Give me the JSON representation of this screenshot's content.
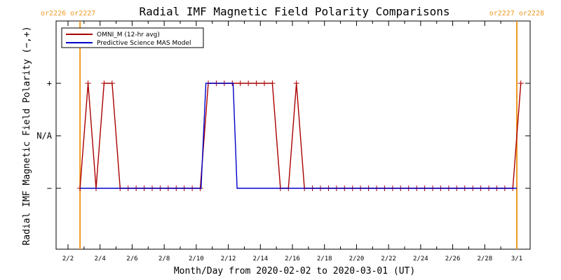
{
  "chart_data": {
    "type": "line",
    "title": "Radial IMF Magnetic Field Polarity Comparisons",
    "xlabel": "Month/Day from 2020-02-02 to 2020-03-01 (UT)",
    "ylabel": "Radial IMF Magnetic Field Polarity (−,+)",
    "x_unit": "days since 2020-02-02 00:00 UT",
    "xlim": [
      0,
      28.1
    ],
    "ylim": [
      -1.5,
      1.5
    ],
    "x_ticks": [
      {
        "x": 0,
        "label": "2/2"
      },
      {
        "x": 2,
        "label": "2/4"
      },
      {
        "x": 4,
        "label": "2/6"
      },
      {
        "x": 6,
        "label": "2/8"
      },
      {
        "x": 8,
        "label": "2/10"
      },
      {
        "x": 10,
        "label": "2/12"
      },
      {
        "x": 12,
        "label": "2/14"
      },
      {
        "x": 14,
        "label": "2/16"
      },
      {
        "x": 16,
        "label": "2/18"
      },
      {
        "x": 18,
        "label": "2/20"
      },
      {
        "x": 20,
        "label": "2/22"
      },
      {
        "x": 22,
        "label": "2/24"
      },
      {
        "x": 24,
        "label": "2/26"
      },
      {
        "x": 26,
        "label": "2/28"
      },
      {
        "x": 28,
        "label": "3/1"
      }
    ],
    "y_ticks": [
      {
        "y": 1,
        "label": "+"
      },
      {
        "y": 0,
        "label": "N/A"
      },
      {
        "y": -1,
        "label": "−"
      }
    ],
    "legend": {
      "placement": "top-left"
    },
    "carrington_markers": [
      {
        "x": 0.75,
        "left_label": "or2226",
        "right_label": "or2227",
        "label_side": "left"
      },
      {
        "x": 28.0,
        "left_label": "or2227",
        "right_label": "or2228",
        "label_side": "right"
      }
    ],
    "series": [
      {
        "name": "OMNI_M (12-hr avg)",
        "color": "#aa0000",
        "markers": true,
        "points": [
          [
            0.75,
            -1
          ],
          [
            1.25,
            1
          ],
          [
            1.75,
            -1
          ],
          [
            2.25,
            1
          ],
          [
            2.75,
            1
          ],
          [
            3.25,
            -1
          ],
          [
            3.75,
            -1
          ],
          [
            4.25,
            -1
          ],
          [
            4.75,
            -1
          ],
          [
            5.25,
            -1
          ],
          [
            5.75,
            -1
          ],
          [
            6.25,
            -1
          ],
          [
            6.75,
            -1
          ],
          [
            7.25,
            -1
          ],
          [
            7.75,
            -1
          ],
          [
            8.25,
            -1
          ],
          [
            8.75,
            1
          ],
          [
            9.25,
            1
          ],
          [
            9.75,
            1
          ],
          [
            10.25,
            1
          ],
          [
            10.75,
            1
          ],
          [
            11.25,
            1
          ],
          [
            11.75,
            1
          ],
          [
            12.25,
            1
          ],
          [
            12.75,
            1
          ],
          [
            13.25,
            -1
          ],
          [
            13.75,
            -1
          ],
          [
            14.25,
            1
          ],
          [
            14.75,
            -1
          ],
          [
            15.25,
            -1
          ],
          [
            15.75,
            -1
          ],
          [
            16.25,
            -1
          ],
          [
            16.75,
            -1
          ],
          [
            17.25,
            -1
          ],
          [
            17.75,
            -1
          ],
          [
            18.25,
            -1
          ],
          [
            18.75,
            -1
          ],
          [
            19.25,
            -1
          ],
          [
            19.75,
            -1
          ],
          [
            20.25,
            -1
          ],
          [
            20.75,
            -1
          ],
          [
            21.25,
            -1
          ],
          [
            21.75,
            -1
          ],
          [
            22.25,
            -1
          ],
          [
            22.75,
            -1
          ],
          [
            23.25,
            -1
          ],
          [
            23.75,
            -1
          ],
          [
            24.25,
            -1
          ],
          [
            24.75,
            -1
          ],
          [
            25.25,
            -1
          ],
          [
            25.75,
            -1
          ],
          [
            26.25,
            -1
          ],
          [
            26.75,
            -1
          ],
          [
            27.25,
            -1
          ],
          [
            27.75,
            -1
          ],
          [
            28.25,
            1
          ]
        ]
      },
      {
        "name": "Predictive Science MAS Model",
        "color": "#0000cc",
        "markers": false,
        "points": [
          [
            0.75,
            -1
          ],
          [
            8.3,
            -1
          ],
          [
            8.6,
            1
          ],
          [
            10.3,
            1
          ],
          [
            10.55,
            -1
          ],
          [
            28.0,
            -1
          ]
        ]
      }
    ]
  },
  "colors": {
    "axis": "#000000",
    "carrington_line": "#ee9922",
    "carrington_label": "#ee9922"
  }
}
